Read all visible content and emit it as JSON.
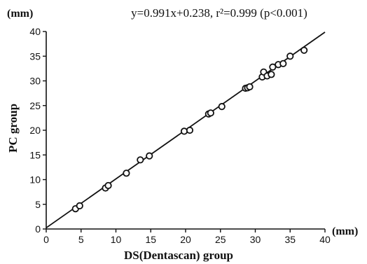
{
  "chart_data": {
    "type": "scatter",
    "title": "y=0.991x+0.238, r²=0.999 (p<0.001)",
    "xlabel": "DS(Dentascan) group",
    "ylabel": "PC group",
    "x_unit": "(mm)",
    "y_unit": "(mm)",
    "xlim": [
      0,
      40
    ],
    "ylim": [
      0,
      40
    ],
    "xticks": [
      0,
      5,
      10,
      15,
      20,
      25,
      30,
      35,
      40
    ],
    "yticks": [
      0,
      5,
      10,
      15,
      20,
      25,
      30,
      35,
      40
    ],
    "grid": false,
    "regression": {
      "slope": 0.991,
      "intercept": 0.238
    },
    "points": [
      {
        "x": 4.2,
        "y": 4.1
      },
      {
        "x": 4.8,
        "y": 4.7
      },
      {
        "x": 8.5,
        "y": 8.3
      },
      {
        "x": 8.9,
        "y": 8.8
      },
      {
        "x": 11.5,
        "y": 11.3
      },
      {
        "x": 13.5,
        "y": 14.0
      },
      {
        "x": 14.8,
        "y": 14.8
      },
      {
        "x": 19.8,
        "y": 19.8
      },
      {
        "x": 20.6,
        "y": 20.0
      },
      {
        "x": 23.3,
        "y": 23.3
      },
      {
        "x": 23.6,
        "y": 23.5
      },
      {
        "x": 25.2,
        "y": 24.8
      },
      {
        "x": 28.6,
        "y": 28.5
      },
      {
        "x": 28.9,
        "y": 28.6
      },
      {
        "x": 29.2,
        "y": 28.8
      },
      {
        "x": 31.0,
        "y": 30.8
      },
      {
        "x": 31.2,
        "y": 31.8
      },
      {
        "x": 31.7,
        "y": 31.0
      },
      {
        "x": 32.3,
        "y": 31.3
      },
      {
        "x": 32.5,
        "y": 32.8
      },
      {
        "x": 33.3,
        "y": 33.3
      },
      {
        "x": 34.0,
        "y": 33.5
      },
      {
        "x": 35.0,
        "y": 35.0
      },
      {
        "x": 37.0,
        "y": 36.2
      }
    ]
  }
}
